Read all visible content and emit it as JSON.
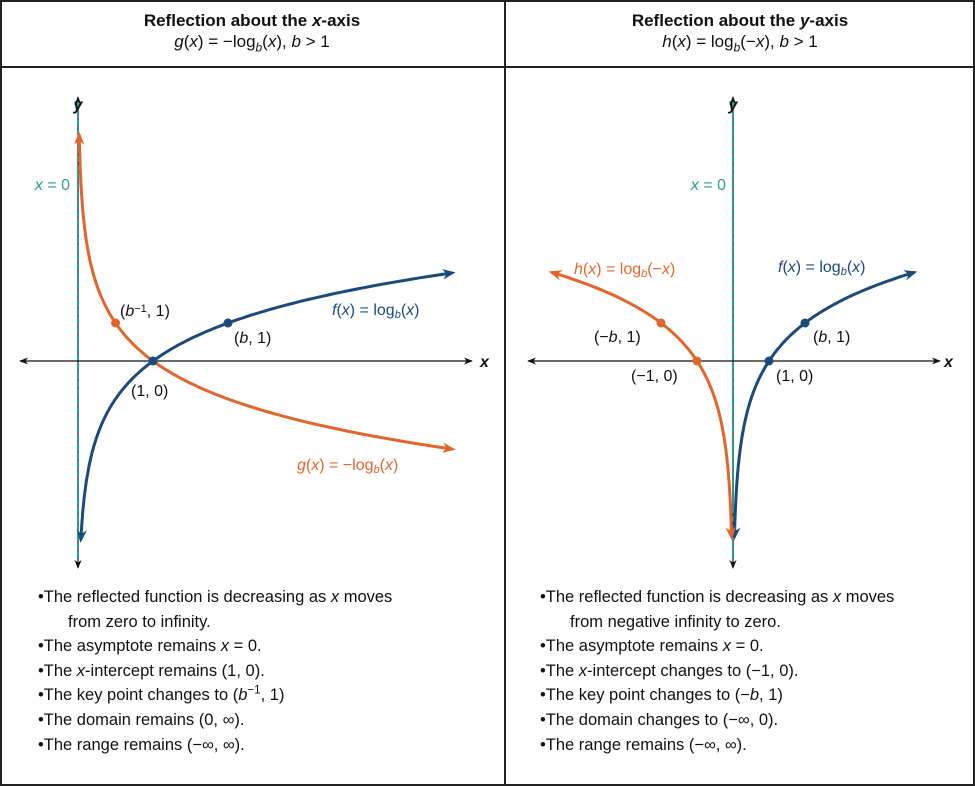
{
  "colors": {
    "f": "#1b4b7c",
    "reflected": "#e4652c",
    "asymptote": "#2b9c98",
    "axis": "#111111"
  },
  "panels": [
    {
      "title": [
        [
          "Reflection about the ",
          ""
        ],
        [
          "x",
          "i"
        ],
        [
          "-axis",
          ""
        ]
      ],
      "formula": [
        [
          "g",
          "i"
        ],
        [
          "(",
          ""
        ],
        [
          "x",
          "i"
        ],
        [
          ") = −log",
          ""
        ],
        [
          "b",
          "isub"
        ],
        [
          "(",
          ""
        ],
        [
          "x",
          "i"
        ],
        [
          "), ",
          ""
        ],
        [
          "b",
          "i"
        ],
        [
          " > 1",
          ""
        ]
      ],
      "graph": {
        "axis_x_label": "x",
        "axis_y_label": "y",
        "asymptote_label": [
          [
            "x",
            "i"
          ],
          [
            " = 0",
            ""
          ]
        ],
        "base_b": 2,
        "f_label": [
          [
            "f",
            "i"
          ],
          [
            "(",
            ""
          ],
          [
            "x",
            "i"
          ],
          [
            ") = log",
            ""
          ],
          [
            "b",
            "isub"
          ],
          [
            "(",
            ""
          ],
          [
            "x",
            "i"
          ],
          [
            ")",
            ""
          ]
        ],
        "reflected_label": [
          [
            "g",
            "i"
          ],
          [
            "(",
            ""
          ],
          [
            "x",
            "i"
          ],
          [
            ") = −log",
            ""
          ],
          [
            "b",
            "isub"
          ],
          [
            "(",
            ""
          ],
          [
            "x",
            "i"
          ],
          [
            ")",
            ""
          ]
        ],
        "points": [
          {
            "label": [
              [
                "(",
                ""
              ],
              [
                "b",
                "i"
              ],
              [
                "−1",
                "sup"
              ],
              [
                ", 1)",
                ""
              ]
            ],
            "series": "reflected"
          },
          {
            "label": [
              [
                "(1, 0)",
                ""
              ]
            ],
            "series": "f"
          },
          {
            "label": [
              [
                "(",
                ""
              ],
              [
                "b",
                "i"
              ],
              [
                ", 1)",
                ""
              ]
            ],
            "series": "f"
          }
        ]
      },
      "bullets": [
        [
          [
            "•The reflected function is decreasing as ",
            ""
          ],
          [
            "x",
            "i"
          ],
          [
            " moves",
            ""
          ]
        ],
        [
          [
            "from zero to infinity.",
            ""
          ]
        ],
        [
          [
            "•The asymptote remains ",
            ""
          ],
          [
            "x",
            "i"
          ],
          [
            " = 0.",
            ""
          ]
        ],
        [
          [
            "•The ",
            ""
          ],
          [
            "x",
            "i"
          ],
          [
            "-intercept remains (1, 0).",
            ""
          ]
        ],
        [
          [
            "•The key point changes to (",
            ""
          ],
          [
            "b",
            "i"
          ],
          [
            "−1",
            "sup"
          ],
          [
            ", 1)",
            ""
          ]
        ],
        [
          [
            "•The domain remains (0, ∞).",
            ""
          ]
        ],
        [
          [
            "•The range remains (−∞, ∞).",
            ""
          ]
        ]
      ]
    },
    {
      "title": [
        [
          "Reflection about the ",
          ""
        ],
        [
          "y",
          "i"
        ],
        [
          "-axis",
          ""
        ]
      ],
      "formula": [
        [
          "h",
          "i"
        ],
        [
          "(",
          ""
        ],
        [
          "x",
          "i"
        ],
        [
          ") = log",
          ""
        ],
        [
          "b",
          "isub"
        ],
        [
          "(−",
          ""
        ],
        [
          "x",
          "i"
        ],
        [
          "), ",
          ""
        ],
        [
          "b",
          "i"
        ],
        [
          " > 1",
          ""
        ]
      ],
      "graph": {
        "axis_x_label": "x",
        "axis_y_label": "y",
        "asymptote_label": [
          [
            "x",
            "i"
          ],
          [
            " = 0",
            ""
          ]
        ],
        "base_b": 2,
        "f_label": [
          [
            "f",
            "i"
          ],
          [
            "(",
            ""
          ],
          [
            "x",
            "i"
          ],
          [
            ") = log",
            ""
          ],
          [
            "b",
            "isub"
          ],
          [
            "(",
            ""
          ],
          [
            "x",
            "i"
          ],
          [
            ")",
            ""
          ]
        ],
        "reflected_label": [
          [
            "h",
            "i"
          ],
          [
            "(",
            ""
          ],
          [
            "x",
            "i"
          ],
          [
            ") = log",
            ""
          ],
          [
            "b",
            "isub"
          ],
          [
            "(−",
            ""
          ],
          [
            "x",
            "i"
          ],
          [
            ")",
            ""
          ]
        ],
        "points": [
          {
            "label": [
              [
                "(−",
                ""
              ],
              [
                "b",
                "i"
              ],
              [
                ", 1)",
                ""
              ]
            ],
            "series": "reflected"
          },
          {
            "label": [
              [
                "(−1, 0)",
                ""
              ]
            ],
            "series": "reflected"
          },
          {
            "label": [
              [
                "(1, 0)",
                ""
              ]
            ],
            "series": "f"
          },
          {
            "label": [
              [
                "(",
                ""
              ],
              [
                "b",
                "i"
              ],
              [
                ", 1)",
                ""
              ]
            ],
            "series": "f"
          }
        ]
      },
      "bullets": [
        [
          [
            "•The reflected function is decreasing as ",
            ""
          ],
          [
            "x",
            "i"
          ],
          [
            " moves",
            ""
          ]
        ],
        [
          [
            "from  negative infinity to zero.",
            ""
          ]
        ],
        [
          [
            "•The asymptote remains ",
            ""
          ],
          [
            "x",
            "i"
          ],
          [
            " = 0.",
            ""
          ]
        ],
        [
          [
            "•The ",
            ""
          ],
          [
            "x",
            "i"
          ],
          [
            "-intercept changes to (−1, 0).",
            ""
          ]
        ],
        [
          [
            "•The key point changes to (−",
            ""
          ],
          [
            "b",
            "i"
          ],
          [
            ", 1)",
            ""
          ]
        ],
        [
          [
            "•The domain changes to (−∞, 0).",
            ""
          ]
        ],
        [
          [
            "•The range remains (−∞, ∞).",
            ""
          ]
        ]
      ]
    }
  ]
}
